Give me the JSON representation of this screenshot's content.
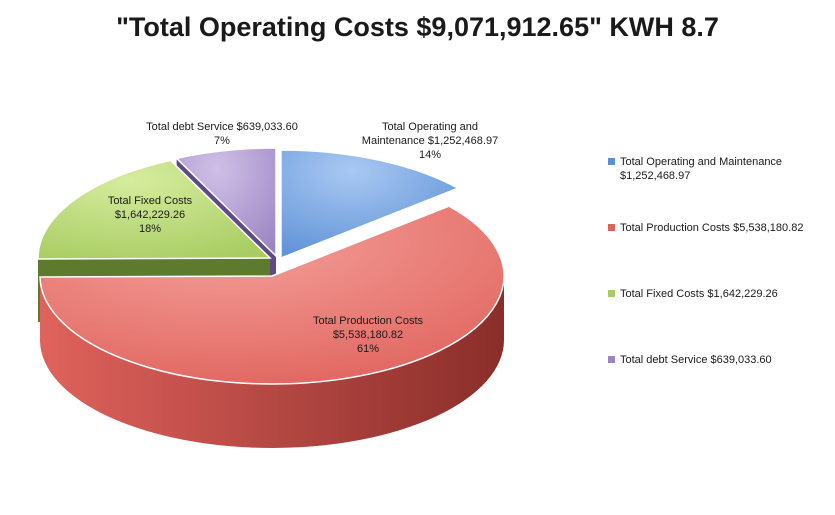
{
  "chart_data": {
    "type": "pie",
    "title": "\"Total Operating Costs $9,071,912.65\" KWH 8.7",
    "legend_position": "right",
    "slices": [
      {
        "name": "Total Operating and Maintenance",
        "value": 1252468.97,
        "value_label": "$1,252,468.97",
        "percent_label": "14%",
        "label_lines": [
          "Total Operating and",
          "Maintenance  $1,252,468.97",
          "14%"
        ],
        "legend_lines": [
          "Total Operating and Maintenance",
          "$1,252,468.97"
        ],
        "color": "#5b8fd6",
        "light": "#a9c8f2",
        "dark": "#3a65a8"
      },
      {
        "name": "Total Production Costs",
        "value": 5538180.82,
        "value_label": "$5,538,180.82",
        "percent_label": "61%",
        "label_lines": [
          "Total Production Costs",
          "$5,538,180.82",
          "61%"
        ],
        "legend_lines": [
          "Total Production Costs $5,538,180.82"
        ],
        "color": "#e0625c",
        "light": "#f4a09a",
        "dark": "#8a2e2a"
      },
      {
        "name": "Total Fixed Costs",
        "value": 1642229.26,
        "value_label": "$1,642,229.26",
        "percent_label": "18%",
        "label_lines": [
          "Total Fixed Costs",
          "$1,642,229.26",
          "18%"
        ],
        "legend_lines": [
          "Total Fixed Costs $1,642,229.26"
        ],
        "color": "#a8cc62",
        "light": "#d6ec9e",
        "dark": "#5e7a2c"
      },
      {
        "name": "Total debt Service",
        "value": 639033.6,
        "value_label": "$639,033.60",
        "percent_label": "7%",
        "label_lines": [
          "Total debt Service $639,033.60",
          "7%"
        ],
        "legend_lines": [
          "Total debt Service $639,033.60"
        ],
        "color": "#9d85c4",
        "light": "#cfc0e6",
        "dark": "#5f4a86"
      }
    ]
  }
}
